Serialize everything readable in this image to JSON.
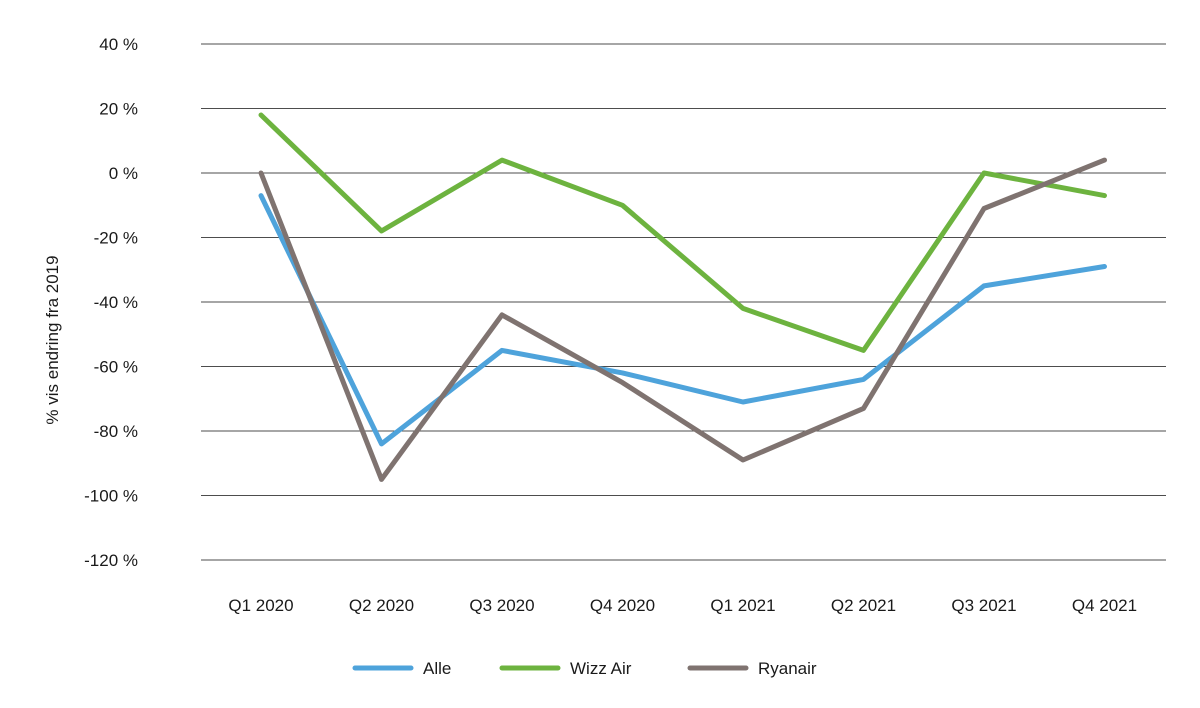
{
  "chart_data": {
    "type": "line",
    "title": "",
    "xlabel": "",
    "ylabel": "% vis endring fra 2019",
    "categories": [
      "Q1 2020",
      "Q2 2020",
      "Q3 2020",
      "Q4 2020",
      "Q1 2021",
      "Q2 2021",
      "Q3 2021",
      "Q4 2021"
    ],
    "ylim": [
      -120,
      40
    ],
    "yticks": [
      40,
      20,
      0,
      -20,
      -40,
      -60,
      -80,
      -100,
      -120
    ],
    "ytick_labels": [
      "40 %",
      "20 %",
      "0 %",
      "-20 %",
      "-40 %",
      "-60 %",
      "-80 %",
      "-100 %",
      "-120 %"
    ],
    "grid": true,
    "legend_position": "bottom-center",
    "series": [
      {
        "name": "Alle",
        "color": "#4ea3db",
        "values": [
          -7,
          -84,
          -55,
          -62,
          -71,
          -64,
          -35,
          -29
        ]
      },
      {
        "name": "Wizz Air",
        "color": "#6db33f",
        "values": [
          18,
          -18,
          4,
          -10,
          -42,
          -55,
          0,
          -7
        ]
      },
      {
        "name": "Ryanair",
        "color": "#7f7370",
        "values": [
          0,
          -95,
          -44,
          -65,
          -89,
          -73,
          -11,
          4
        ]
      }
    ]
  }
}
